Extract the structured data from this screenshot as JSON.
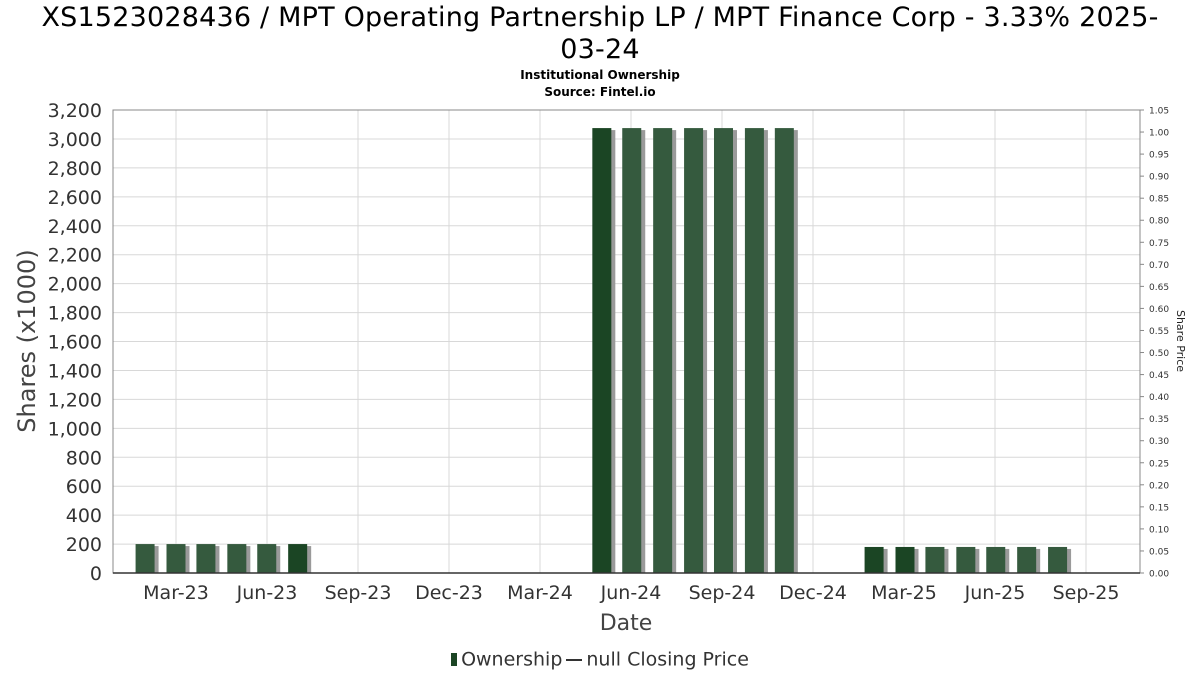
{
  "header": {
    "title_line1": "XS1523028436 / MPT Operating Partnership LP / MPT Finance Corp - 3.33% 2025-",
    "title_line2": "03-24",
    "subtitle": "Institutional Ownership",
    "source": "Source: Fintel.io"
  },
  "legend": {
    "ownership": "Ownership",
    "price": "null Closing Price"
  },
  "colors": {
    "bar_dark": "#1b4524",
    "bar_light": "#355a3e",
    "bar_shadow": "#9a9a9a",
    "grid": "#d8d8d8"
  },
  "chart_data": {
    "type": "bar",
    "title": "XS1523028436 / MPT Operating Partnership LP / MPT Finance Corp - 3.33% 2025-03-24",
    "subtitle": "Institutional Ownership",
    "xlabel": "Date",
    "ylabel": "Shares (x1000)",
    "y2label": "Share Price",
    "ylim": [
      0,
      3200
    ],
    "y2lim": [
      0,
      1.05
    ],
    "yticks": [
      0,
      200,
      400,
      600,
      800,
      1000,
      1200,
      1400,
      1600,
      1800,
      2000,
      2200,
      2400,
      2600,
      2800,
      3000,
      3200
    ],
    "y2ticks": [
      "0.00",
      "0.05",
      "0.10",
      "0.15",
      "0.20",
      "0.25",
      "0.30",
      "0.35",
      "0.40",
      "0.45",
      "0.50",
      "0.55",
      "0.60",
      "0.65",
      "0.70",
      "0.75",
      "0.80",
      "0.85",
      "0.90",
      "0.95",
      "1.00",
      "1.05"
    ],
    "xticks": [
      "Mar-23",
      "Jun-23",
      "Sep-23",
      "Dec-23",
      "Mar-24",
      "Jun-24",
      "Sep-24",
      "Dec-24",
      "Mar-25",
      "Jun-25",
      "Sep-25"
    ],
    "grid": true,
    "legend_position": "bottom",
    "series": [
      {
        "name": "Ownership",
        "points": [
          {
            "date": "2023-02-28",
            "value": 200,
            "shade": "light"
          },
          {
            "date": "2023-03-31",
            "value": 200,
            "shade": "light"
          },
          {
            "date": "2023-04-30",
            "value": 200,
            "shade": "light"
          },
          {
            "date": "2023-05-31",
            "value": 200,
            "shade": "light"
          },
          {
            "date": "2023-06-30",
            "value": 200,
            "shade": "light"
          },
          {
            "date": "2023-07-31",
            "value": 200,
            "shade": "dark"
          },
          {
            "date": "2024-05-31",
            "value": 3075,
            "shade": "dark"
          },
          {
            "date": "2024-06-30",
            "value": 3075,
            "shade": "light"
          },
          {
            "date": "2024-07-31",
            "value": 3075,
            "shade": "light"
          },
          {
            "date": "2024-08-31",
            "value": 3075,
            "shade": "light"
          },
          {
            "date": "2024-09-30",
            "value": 3075,
            "shade": "light"
          },
          {
            "date": "2024-10-31",
            "value": 3075,
            "shade": "light"
          },
          {
            "date": "2024-11-30",
            "value": 3075,
            "shade": "light"
          },
          {
            "date": "2025-02-28",
            "value": 180,
            "shade": "dark"
          },
          {
            "date": "2025-03-31",
            "value": 180,
            "shade": "dark"
          },
          {
            "date": "2025-04-30",
            "value": 180,
            "shade": "light"
          },
          {
            "date": "2025-05-31",
            "value": 180,
            "shade": "light"
          },
          {
            "date": "2025-06-30",
            "value": 180,
            "shade": "light"
          },
          {
            "date": "2025-07-31",
            "value": 180,
            "shade": "light"
          },
          {
            "date": "2025-08-31",
            "value": 180,
            "shade": "light"
          }
        ]
      }
    ]
  }
}
